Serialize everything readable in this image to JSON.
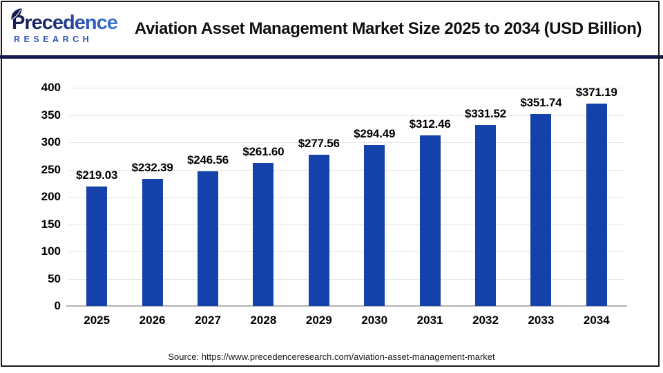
{
  "header": {
    "logo": {
      "line1": "Precedence",
      "line2": "RESEARCH",
      "leaf_icon_color": "#141b4f"
    },
    "title": "Aviation Asset Management Market Size 2025 to 2034 (USD Billion)"
  },
  "chart_data": {
    "type": "bar",
    "title": "Aviation Asset Management Market Size 2025 to 2034 (USD Billion)",
    "unit": "USD Billion",
    "categories": [
      "2025",
      "2026",
      "2027",
      "2028",
      "2029",
      "2030",
      "2031",
      "2032",
      "2033",
      "2034"
    ],
    "values": [
      219.03,
      232.39,
      246.56,
      261.6,
      277.56,
      294.49,
      312.46,
      331.52,
      351.74,
      371.19
    ],
    "value_labels": [
      "$219.03",
      "$232.39",
      "$246.56",
      "$261.60",
      "$277.56",
      "$294.49",
      "$312.46",
      "$331.52",
      "$351.74",
      "$371.19"
    ],
    "yticks": [
      0,
      50,
      100,
      150,
      200,
      250,
      300,
      350,
      400
    ],
    "ylim": [
      0,
      400
    ],
    "xlabel": "",
    "ylabel": "",
    "grid": true,
    "legend_position": "none",
    "bar_color": "#1441aa",
    "gridline_color": "#e4e4e4",
    "axis_line_color": "#b3b3b3"
  },
  "footer": {
    "source": "Source: https://www.precedenceresearch.com/aviation-asset-management-market"
  },
  "colors": {
    "divider_navy": "#141b4f",
    "title_text": "#111111",
    "logo_gradient_start": "#141b4f",
    "logo_gradient_end": "#3f74d9",
    "logo_research_blue": "#2953b5"
  }
}
